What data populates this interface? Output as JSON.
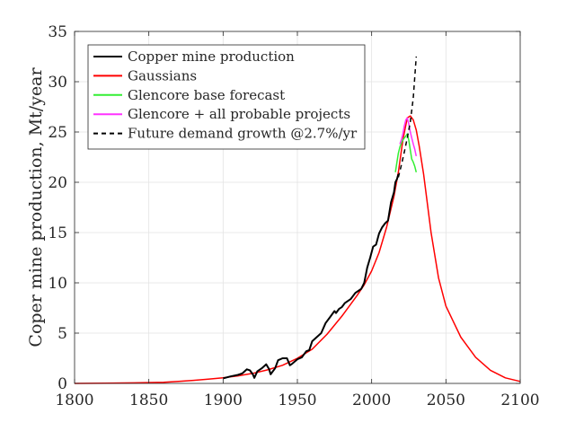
{
  "chart_data": {
    "type": "line",
    "xlabel": "",
    "ylabel": "Coper mine production, Mt/year",
    "xlim": [
      1800,
      2100
    ],
    "ylim": [
      0,
      35
    ],
    "xticks": [
      1800,
      1850,
      1900,
      1950,
      2000,
      2050,
      2100
    ],
    "yticks": [
      0,
      5,
      10,
      15,
      20,
      25,
      30,
      35
    ],
    "grid": true,
    "legend_position": "top-left",
    "series": [
      {
        "name": "Copper mine production",
        "color": "#000000",
        "style": "solid",
        "x": [
          1900,
          1905,
          1910,
          1913,
          1916,
          1918,
          1920,
          1921,
          1923,
          1926,
          1929,
          1931,
          1932,
          1935,
          1937,
          1940,
          1943,
          1945,
          1946,
          1950,
          1953,
          1956,
          1958,
          1960,
          1963,
          1966,
          1969,
          1972,
          1975,
          1976,
          1978,
          1980,
          1982,
          1984,
          1986,
          1989,
          1991,
          1993,
          1995,
          1997,
          1999,
          2001,
          2003,
          2005,
          2007,
          2009,
          2011,
          2013,
          2015,
          2016,
          2017,
          2018
        ],
        "y": [
          0.5,
          0.7,
          0.85,
          1.0,
          1.4,
          1.3,
          0.9,
          0.55,
          1.2,
          1.5,
          1.9,
          1.4,
          0.9,
          1.5,
          2.3,
          2.5,
          2.5,
          1.8,
          1.9,
          2.4,
          2.6,
          3.2,
          3.3,
          4.2,
          4.6,
          5.0,
          6.0,
          6.6,
          7.2,
          7.0,
          7.4,
          7.6,
          8.0,
          8.2,
          8.4,
          9.0,
          9.2,
          9.4,
          10.0,
          11.5,
          12.5,
          13.6,
          13.8,
          14.9,
          15.5,
          15.9,
          16.2,
          18.0,
          19.0,
          20.0,
          20.3,
          20.8
        ]
      },
      {
        "name": "Gaussians",
        "color": "#ff0000",
        "style": "solid",
        "x": [
          1800,
          1820,
          1840,
          1860,
          1870,
          1880,
          1890,
          1900,
          1910,
          1920,
          1930,
          1940,
          1950,
          1960,
          1970,
          1980,
          1990,
          1995,
          2000,
          2005,
          2010,
          2015,
          2018,
          2021,
          2024,
          2026,
          2028,
          2030,
          2032,
          2035,
          2040,
          2045,
          2050,
          2060,
          2070,
          2080,
          2090,
          2100
        ],
        "y": [
          0.0,
          0.02,
          0.05,
          0.12,
          0.2,
          0.3,
          0.42,
          0.55,
          0.75,
          1.0,
          1.35,
          1.8,
          2.5,
          3.4,
          4.9,
          6.7,
          8.7,
          9.8,
          11.2,
          13.0,
          15.5,
          18.6,
          21.0,
          24.2,
          26.4,
          26.6,
          26.2,
          25.2,
          23.6,
          20.8,
          15.0,
          10.5,
          7.7,
          4.6,
          2.6,
          1.3,
          0.55,
          0.2
        ]
      },
      {
        "name": "Glencore base forecast",
        "color": "#33ee33",
        "style": "solid",
        "x": [
          2016,
          2017,
          2018,
          2019,
          2020,
          2021,
          2022,
          2023,
          2024,
          2025,
          2026,
          2027,
          2028,
          2029,
          2030
        ],
        "y": [
          21.0,
          22.0,
          22.9,
          23.5,
          23.9,
          24.2,
          24.4,
          24.6,
          24.8,
          24.2,
          23.2,
          22.3,
          22.0,
          21.6,
          21.0
        ]
      },
      {
        "name": "Glencore + all probable projects",
        "color": "#ff33ff",
        "style": "solid",
        "x": [
          2019,
          2020,
          2021,
          2022,
          2023,
          2024,
          2025,
          2026,
          2027,
          2028,
          2029,
          2030
        ],
        "y": [
          23.8,
          24.2,
          24.8,
          25.6,
          26.2,
          26.4,
          25.8,
          25.0,
          24.4,
          23.8,
          23.3,
          22.6
        ]
      },
      {
        "name": "Future demand growth @2.7%/yr",
        "color": "#000000",
        "style": "dashed",
        "x": [
          2018,
          2020,
          2022,
          2024,
          2026,
          2028,
          2030
        ],
        "y": [
          20.5,
          21.7,
          23.0,
          24.4,
          26.0,
          28.4,
          32.5
        ]
      }
    ]
  }
}
